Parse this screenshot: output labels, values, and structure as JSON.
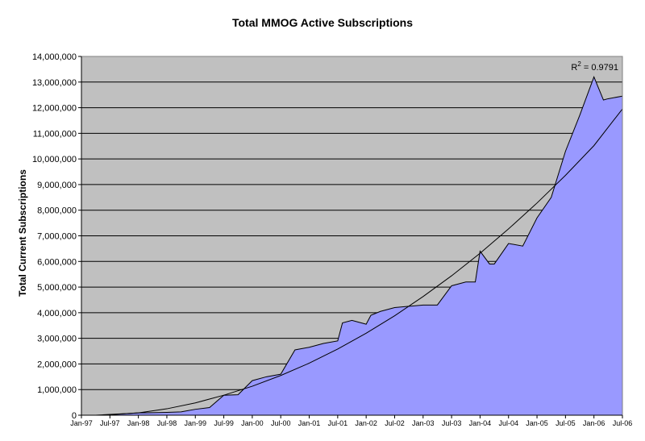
{
  "chart_data": {
    "type": "area",
    "title": "Total MMOG Active Subscriptions",
    "xlabel": "",
    "ylabel": "Total Current Subscriptions",
    "ylim": [
      0,
      14000000
    ],
    "y_ticks": [
      0,
      1000000,
      2000000,
      3000000,
      4000000,
      5000000,
      6000000,
      7000000,
      8000000,
      9000000,
      10000000,
      11000000,
      12000000,
      13000000,
      14000000
    ],
    "y_tick_labels": [
      "0",
      "1,000,000",
      "2,000,000",
      "3,000,000",
      "4,000,000",
      "5,000,000",
      "6,000,000",
      "7,000,000",
      "8,000,000",
      "9,000,000",
      "10,000,000",
      "11,000,000",
      "12,000,000",
      "13,000,000",
      "14,000,000"
    ],
    "x_tick_labels": [
      "Jan-97",
      "Jul-97",
      "Jan-98",
      "Jul-98",
      "Jan-99",
      "Jul-99",
      "Jan-00",
      "Jul-00",
      "Jan-01",
      "Jul-01",
      "Jan-02",
      "Jul-02",
      "Jan-03",
      "Jul-03",
      "Jan-04",
      "Jul-04",
      "Jan-05",
      "Jul-05",
      "Jan-06",
      "Jul-06"
    ],
    "grid": true,
    "plot_background": "#C0C0C0",
    "area_color": "#9999FF",
    "series": [
      {
        "x": [
          "Jan-97",
          "Apr-97",
          "Jul-97",
          "Oct-97",
          "Jan-98",
          "Apr-98",
          "Jul-98",
          "Oct-98",
          "Jan-99",
          "Apr-99",
          "Jul-99",
          "Oct-99",
          "Jan-00",
          "Apr-00",
          "Jul-00",
          "Oct-00",
          "Jan-01",
          "Apr-01",
          "Jul-01",
          "Aug-01",
          "Oct-01",
          "Jan-02",
          "Feb-02",
          "Apr-02",
          "Jul-02",
          "Oct-02",
          "Jan-03",
          "Apr-03",
          "Jul-03",
          "Oct-03",
          "Dec-03",
          "Jan-04",
          "Mar-04",
          "Apr-04",
          "Jul-04",
          "Oct-04",
          "Jan-05",
          "Apr-05",
          "Jul-05",
          "Oct-05",
          "Jan-06",
          "Mar-06",
          "Apr-06",
          "Jul-06"
        ],
        "values": [
          0,
          0,
          30000,
          60000,
          90000,
          100000,
          110000,
          130000,
          230000,
          300000,
          780000,
          800000,
          1350000,
          1500000,
          1600000,
          2550000,
          2650000,
          2800000,
          2900000,
          3600000,
          3700000,
          3550000,
          3900000,
          4050000,
          4200000,
          4250000,
          4300000,
          4300000,
          5050000,
          5200000,
          5200000,
          6400000,
          5900000,
          5900000,
          6700000,
          6600000,
          7700000,
          8500000,
          10300000,
          11700000,
          13200000,
          12300000,
          12350000,
          12450000
        ]
      },
      {
        "name": "trendline",
        "x": [
          "Jul-97",
          "Jan-98",
          "Jul-98",
          "Jan-99",
          "Jul-99",
          "Jan-00",
          "Jul-00",
          "Jan-01",
          "Jul-01",
          "Jan-02",
          "Jul-02",
          "Jan-03",
          "Jul-03",
          "Jan-04",
          "Jul-04",
          "Jan-05",
          "Jul-05",
          "Jan-06",
          "Jul-06"
        ],
        "values": [
          20000,
          90000,
          250000,
          480000,
          780000,
          1130000,
          1550000,
          2030000,
          2580000,
          3200000,
          3880000,
          4630000,
          5440000,
          6320000,
          7270000,
          8280000,
          9360000,
          10520000,
          11950000
        ]
      }
    ],
    "annotations": [
      {
        "text": "R",
        "sup": "2",
        "rest": " = 0.9791",
        "position": "top-right"
      }
    ]
  }
}
